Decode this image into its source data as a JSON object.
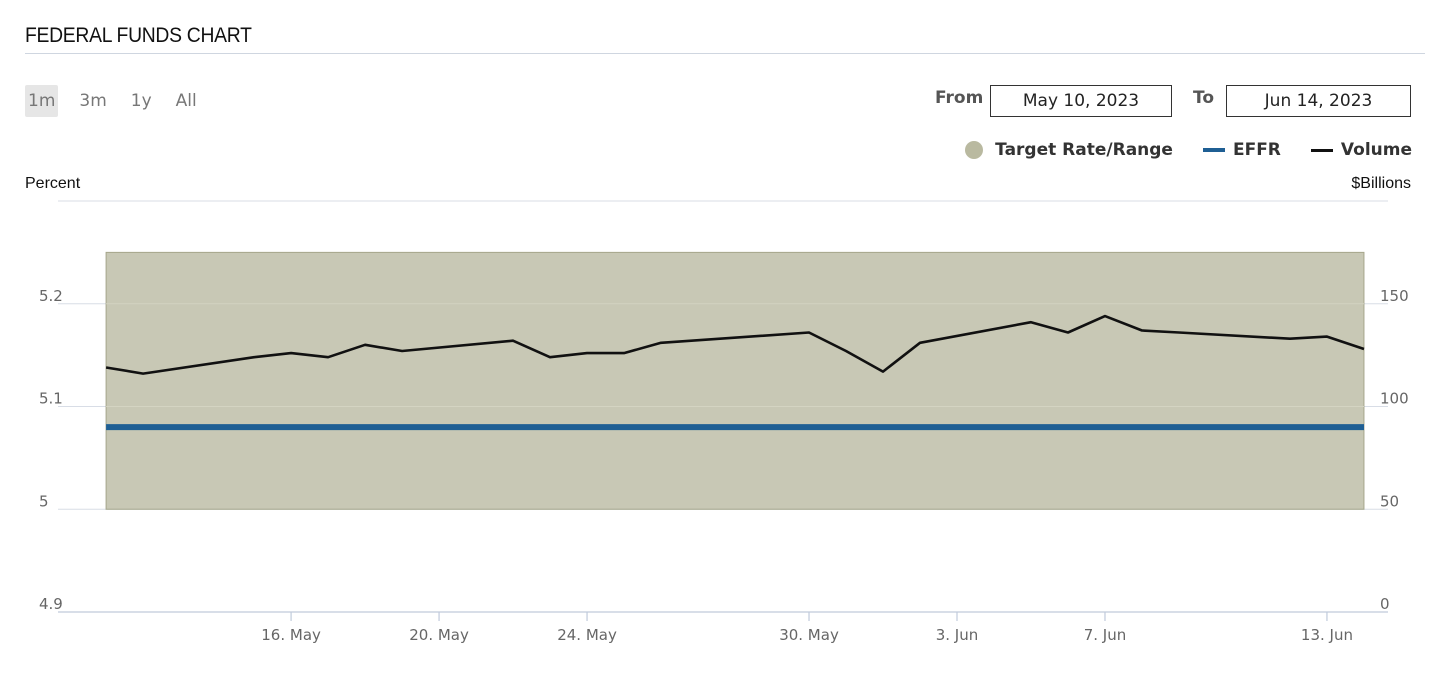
{
  "header": {
    "title": "FEDERAL FUNDS CHART"
  },
  "ranges": [
    {
      "label": "1m",
      "active": true
    },
    {
      "label": "3m",
      "active": false
    },
    {
      "label": "1y",
      "active": false
    },
    {
      "label": "All",
      "active": false
    }
  ],
  "dates": {
    "from_label": "From",
    "from_value": "May 10, 2023",
    "to_label": "To",
    "to_value": "Jun 14, 2023"
  },
  "legend": [
    {
      "label": "Target Rate/Range",
      "color": "#b9b9a0",
      "icon": "dot"
    },
    {
      "label": "EFFR",
      "color": "#1f5f94",
      "icon": "line"
    },
    {
      "label": "Volume",
      "color": "#111111",
      "icon": "line"
    }
  ],
  "axes": {
    "left_title": "Percent",
    "right_title": "$Billions"
  },
  "chart_data": {
    "type": "line",
    "x_ticks": [
      "16. May",
      "20. May",
      "24. May",
      "30. May",
      "3. Jun",
      "7. Jun",
      "13. Jun"
    ],
    "x_tick_dates": [
      "2023-05-16",
      "2023-05-20",
      "2023-05-24",
      "2023-05-30",
      "2023-06-03",
      "2023-06-07",
      "2023-06-13"
    ],
    "x_range": [
      "2023-05-10",
      "2023-06-14"
    ],
    "y_left": {
      "title": "Percent",
      "range": [
        4.9,
        5.3
      ],
      "ticks": [
        "4.9",
        "5",
        "5.1",
        "5.2"
      ],
      "tick_values": [
        4.9,
        5.0,
        5.1,
        5.2
      ]
    },
    "y_right": {
      "title": "$Billions",
      "range": [
        0,
        200
      ],
      "ticks": [
        "0",
        "50",
        "100",
        "150"
      ],
      "tick_values": [
        0,
        50,
        100,
        150
      ]
    },
    "grid": true,
    "legend_position": "top-right",
    "target_range": {
      "name": "Target Rate/Range",
      "lower": 5.0,
      "upper": 5.25,
      "start": "2023-05-11",
      "end": "2023-06-14"
    },
    "series": [
      {
        "name": "EFFR",
        "axis": "left",
        "color": "#1f5f94",
        "x": [
          "2023-05-11",
          "2023-06-14"
        ],
        "y": [
          5.08,
          5.08
        ]
      },
      {
        "name": "Volume",
        "axis": "right",
        "color": "#111111",
        "x": [
          "2023-05-11",
          "2023-05-12",
          "2023-05-15",
          "2023-05-16",
          "2023-05-17",
          "2023-05-18",
          "2023-05-19",
          "2023-05-22",
          "2023-05-23",
          "2023-05-24",
          "2023-05-25",
          "2023-05-26",
          "2023-05-30",
          "2023-05-31",
          "2023-06-01",
          "2023-06-02",
          "2023-06-05",
          "2023-06-06",
          "2023-06-07",
          "2023-06-08",
          "2023-06-09",
          "2023-06-12",
          "2023-06-13",
          "2023-06-14"
        ],
        "y": [
          119,
          116,
          124,
          126,
          124,
          130,
          127,
          132,
          124,
          126,
          126,
          131,
          136,
          127,
          117,
          131,
          141,
          136,
          144,
          137,
          136,
          133,
          134,
          128
        ]
      }
    ]
  }
}
